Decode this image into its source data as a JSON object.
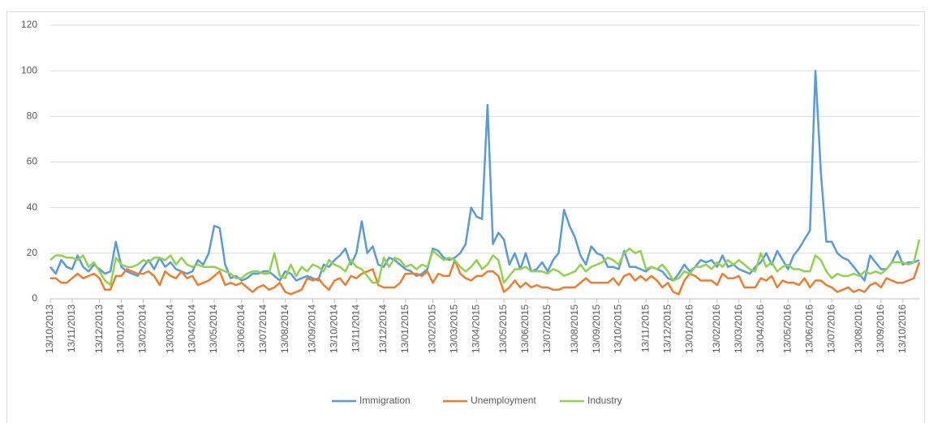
{
  "chart_data": {
    "type": "line",
    "categories": [
      "13/10/2013",
      null,
      null,
      null,
      "13/11/2013",
      null,
      null,
      null,
      null,
      "13/12/2013",
      null,
      null,
      null,
      "13/01/2014",
      null,
      null,
      null,
      "13/02/2014",
      null,
      null,
      null,
      null,
      "13/03/2014",
      null,
      null,
      null,
      "13/04/2014",
      null,
      null,
      null,
      "13/05/2014",
      null,
      null,
      null,
      null,
      "13/06/2014",
      null,
      null,
      null,
      "13/07/2014",
      null,
      null,
      null,
      "13/08/2014",
      null,
      null,
      null,
      null,
      "13/09/2014",
      null,
      null,
      null,
      "13/10/2014",
      null,
      null,
      null,
      "13/11/2014",
      null,
      null,
      null,
      null,
      "13/12/2014",
      null,
      null,
      null,
      "13/01/2015",
      null,
      null,
      null,
      null,
      "13/02/2015",
      null,
      null,
      null,
      "13/03/2015",
      null,
      null,
      null,
      "13/04/2015",
      null,
      null,
      null,
      null,
      "13/05/2015",
      null,
      null,
      null,
      "13/06/2015",
      null,
      null,
      null,
      "13/07/2015",
      null,
      null,
      null,
      null,
      "13/08/2015",
      null,
      null,
      null,
      "13/09/2015",
      null,
      null,
      null,
      "13/10/2015",
      null,
      null,
      null,
      null,
      "13/11/2015",
      null,
      null,
      null,
      "13/12/2015",
      null,
      null,
      null,
      "13/01/2016",
      null,
      null,
      null,
      null,
      "13/02/2016",
      null,
      null,
      null,
      "13/03/2016",
      null,
      null,
      null,
      "13/04/2016",
      null,
      null,
      null,
      null,
      "13/05/2016",
      null,
      null,
      null,
      "13/06/2016",
      null,
      null,
      null,
      "13/07/2016",
      null,
      null,
      null,
      null,
      "13/08/2016",
      null,
      null,
      null,
      "13/09/2016",
      null,
      null,
      null,
      "13/10/2016",
      null,
      null,
      null
    ],
    "series": [
      {
        "name": "Immigration",
        "color": "#5b9bd5",
        "values": [
          14,
          11,
          17,
          14,
          13,
          19,
          14,
          12,
          15,
          13,
          11,
          12,
          25,
          14,
          12,
          11,
          10,
          14,
          17,
          13,
          18,
          14,
          16,
          13,
          12,
          11,
          12,
          17,
          15,
          20,
          32,
          31,
          15,
          9,
          10,
          8,
          9,
          11,
          11,
          12,
          12,
          10,
          8,
          12,
          11,
          8,
          9,
          10,
          9,
          8,
          15,
          14,
          17,
          19,
          22,
          15,
          20,
          34,
          20,
          23,
          15,
          14,
          18,
          17,
          15,
          13,
          12,
          10,
          11,
          13,
          22,
          21,
          18,
          17,
          18,
          20,
          24,
          40,
          36,
          35,
          85,
          24,
          29,
          26,
          15,
          20,
          13,
          20,
          12,
          13,
          16,
          12,
          17,
          20,
          39,
          32,
          27,
          19,
          15,
          23,
          20,
          19,
          14,
          14,
          13,
          21,
          14,
          14,
          13,
          12,
          14,
          13,
          12,
          9,
          8,
          11,
          15,
          12,
          14,
          17,
          16,
          17,
          14,
          19,
          14,
          15,
          13,
          12,
          11,
          14,
          16,
          20,
          15,
          21,
          17,
          13,
          19,
          22,
          26,
          30,
          100,
          55,
          25,
          25,
          20,
          18,
          17,
          14,
          11,
          8,
          19,
          16,
          13,
          13,
          16,
          21,
          15,
          16,
          16,
          17
        ]
      },
      {
        "name": "Unemployment",
        "color": "#ed7d31",
        "values": [
          9,
          9,
          7,
          7,
          9,
          11,
          9,
          10,
          11,
          9,
          4,
          4,
          10,
          10,
          13,
          12,
          11,
          11,
          12,
          10,
          6,
          12,
          10,
          9,
          12,
          9,
          10,
          6,
          7,
          8,
          10,
          12,
          6,
          7,
          6,
          7,
          5,
          3,
          5,
          6,
          4,
          5,
          7,
          3,
          2,
          3,
          4,
          9,
          8,
          9,
          6,
          4,
          8,
          9,
          6,
          10,
          9,
          11,
          12,
          13,
          6,
          5,
          5,
          5,
          7,
          11,
          11,
          11,
          10,
          12,
          7,
          11,
          10,
          10,
          17,
          11,
          9,
          8,
          10,
          10,
          12,
          12,
          10,
          3,
          5,
          8,
          5,
          7,
          5,
          6,
          5,
          5,
          4,
          4,
          5,
          5,
          5,
          7,
          9,
          7,
          7,
          7,
          7,
          9,
          6,
          10,
          11,
          8,
          10,
          8,
          10,
          8,
          5,
          7,
          3,
          2,
          8,
          11,
          10,
          8,
          8,
          8,
          6,
          11,
          9,
          9,
          10,
          5,
          5,
          5,
          9,
          8,
          10,
          5,
          8,
          7,
          7,
          6,
          9,
          5,
          8,
          8,
          6,
          5,
          3,
          4,
          5,
          3,
          4,
          3,
          6,
          7,
          5,
          9,
          8,
          7,
          7,
          8,
          9,
          16
        ]
      },
      {
        "name": "Industry",
        "color": "#92d050",
        "values": [
          17,
          19,
          19,
          18,
          18,
          17,
          19,
          14,
          16,
          12,
          8,
          6,
          18,
          15,
          14,
          14,
          15,
          17,
          16,
          18,
          18,
          17,
          19,
          15,
          18,
          15,
          14,
          15,
          14,
          14,
          14,
          13,
          12,
          11,
          9,
          9,
          11,
          12,
          12,
          11,
          11,
          20,
          10,
          9,
          15,
          10,
          14,
          12,
          15,
          14,
          12,
          17,
          15,
          14,
          12,
          17,
          14,
          13,
          10,
          7,
          7,
          18,
          14,
          18,
          17,
          14,
          15,
          13,
          15,
          14,
          21,
          19,
          17,
          18,
          17,
          14,
          12,
          14,
          17,
          13,
          15,
          19,
          17,
          7,
          10,
          13,
          13,
          14,
          12,
          12,
          12,
          11,
          13,
          12,
          10,
          11,
          12,
          15,
          12,
          14,
          15,
          16,
          18,
          17,
          15,
          20,
          22,
          20,
          21,
          13,
          14,
          13,
          15,
          12,
          8,
          9,
          12,
          11,
          14,
          14,
          15,
          13,
          16,
          14,
          17,
          15,
          17,
          15,
          13,
          12,
          20,
          14,
          16,
          12,
          14,
          15,
          13,
          13,
          12,
          12,
          19,
          17,
          12,
          9,
          11,
          10,
          10,
          11,
          10,
          12,
          11,
          12,
          11,
          13,
          16,
          16,
          16,
          15,
          16,
          26
        ]
      }
    ],
    "ylim": [
      0,
      120
    ],
    "yticks": [
      0,
      20,
      40,
      60,
      80,
      100,
      120
    ],
    "grid": true,
    "legend": "bottom"
  }
}
